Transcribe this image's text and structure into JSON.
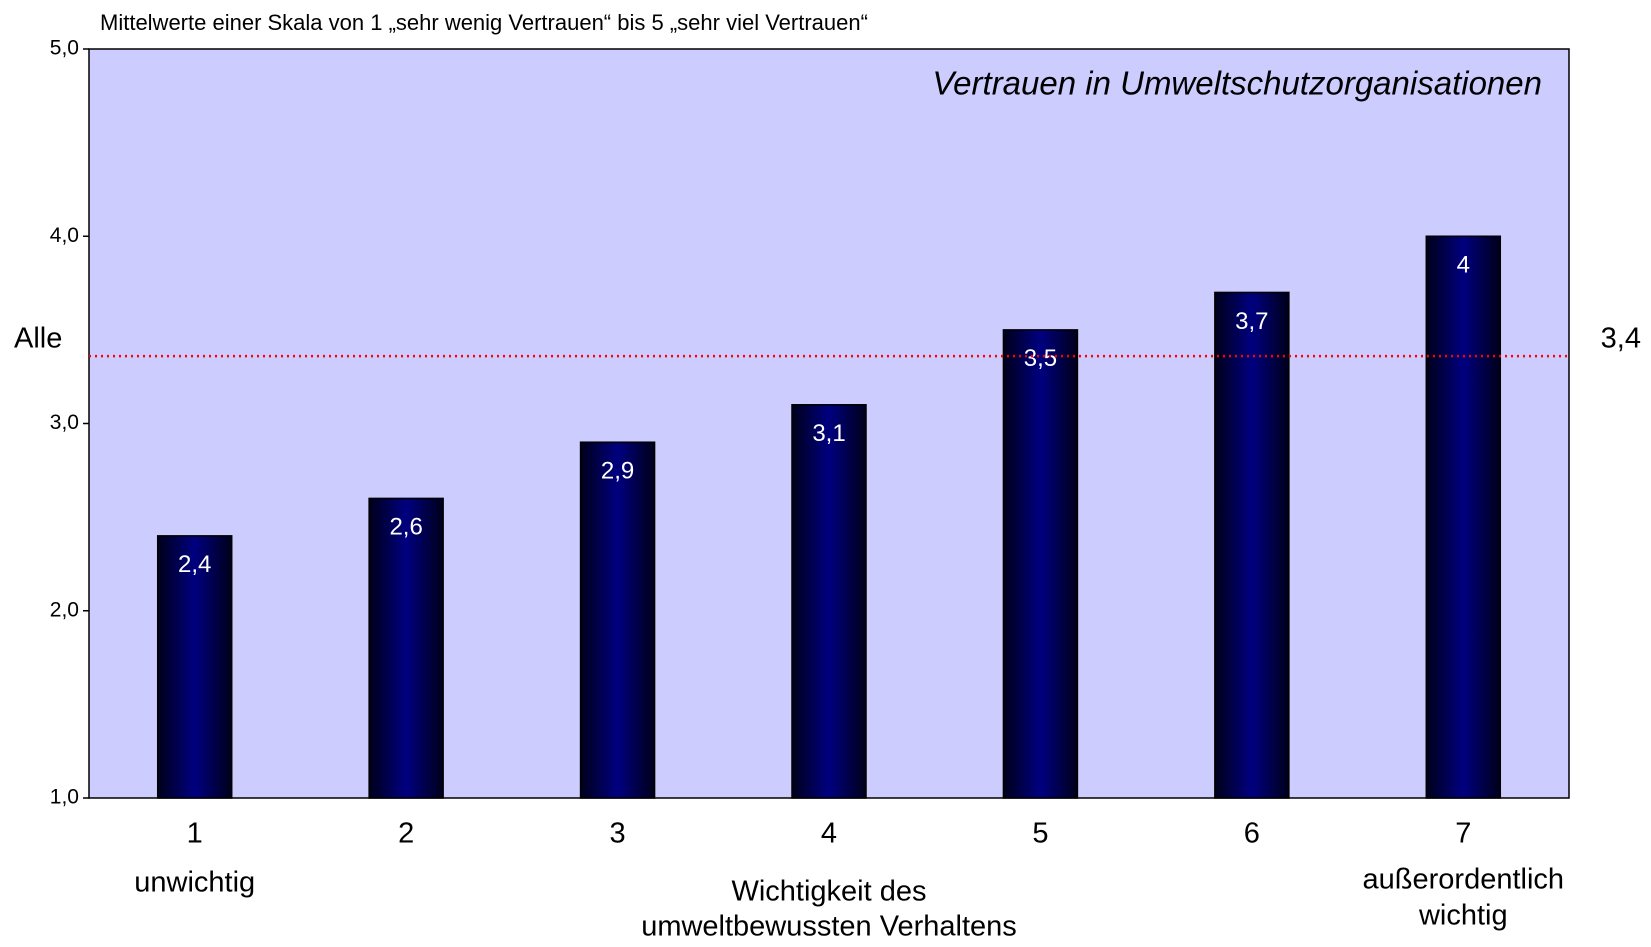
{
  "chart_data": {
    "type": "bar",
    "subtitle": "Mittelwerte einer Skala von 1 „sehr wenig Vertrauen“ bis 5 „sehr viel Vertrauen“",
    "title": "Vertrauen in Umweltschutzorganisationen",
    "categories": [
      "1",
      "2",
      "3",
      "4",
      "5",
      "6",
      "7"
    ],
    "values": [
      2.4,
      2.6,
      2.9,
      3.1,
      3.5,
      3.7,
      4
    ],
    "value_labels": [
      "2,4",
      "2,6",
      "2,9",
      "3,1",
      "3,5",
      "3,7",
      "4"
    ],
    "color": "#000080",
    "background": "#ccccff",
    "ylim": [
      1,
      5
    ],
    "yticks": [
      {
        "value": 1,
        "label": "1,0"
      },
      {
        "value": 2,
        "label": "2,0"
      },
      {
        "value": 3,
        "label": "3,0"
      },
      {
        "value": 4,
        "label": "4,0"
      },
      {
        "value": 5,
        "label": "5,0"
      }
    ],
    "reference_line": {
      "name": "Alle",
      "value": 3.36,
      "label": "3,4",
      "color": "#ff0000"
    },
    "x_label_left": "unwichtig",
    "x_label_center": [
      "Wichtigkeit des",
      "umweltbewussten Verhaltens"
    ],
    "x_label_right": [
      "außerordentlich",
      "wichtig"
    ]
  }
}
